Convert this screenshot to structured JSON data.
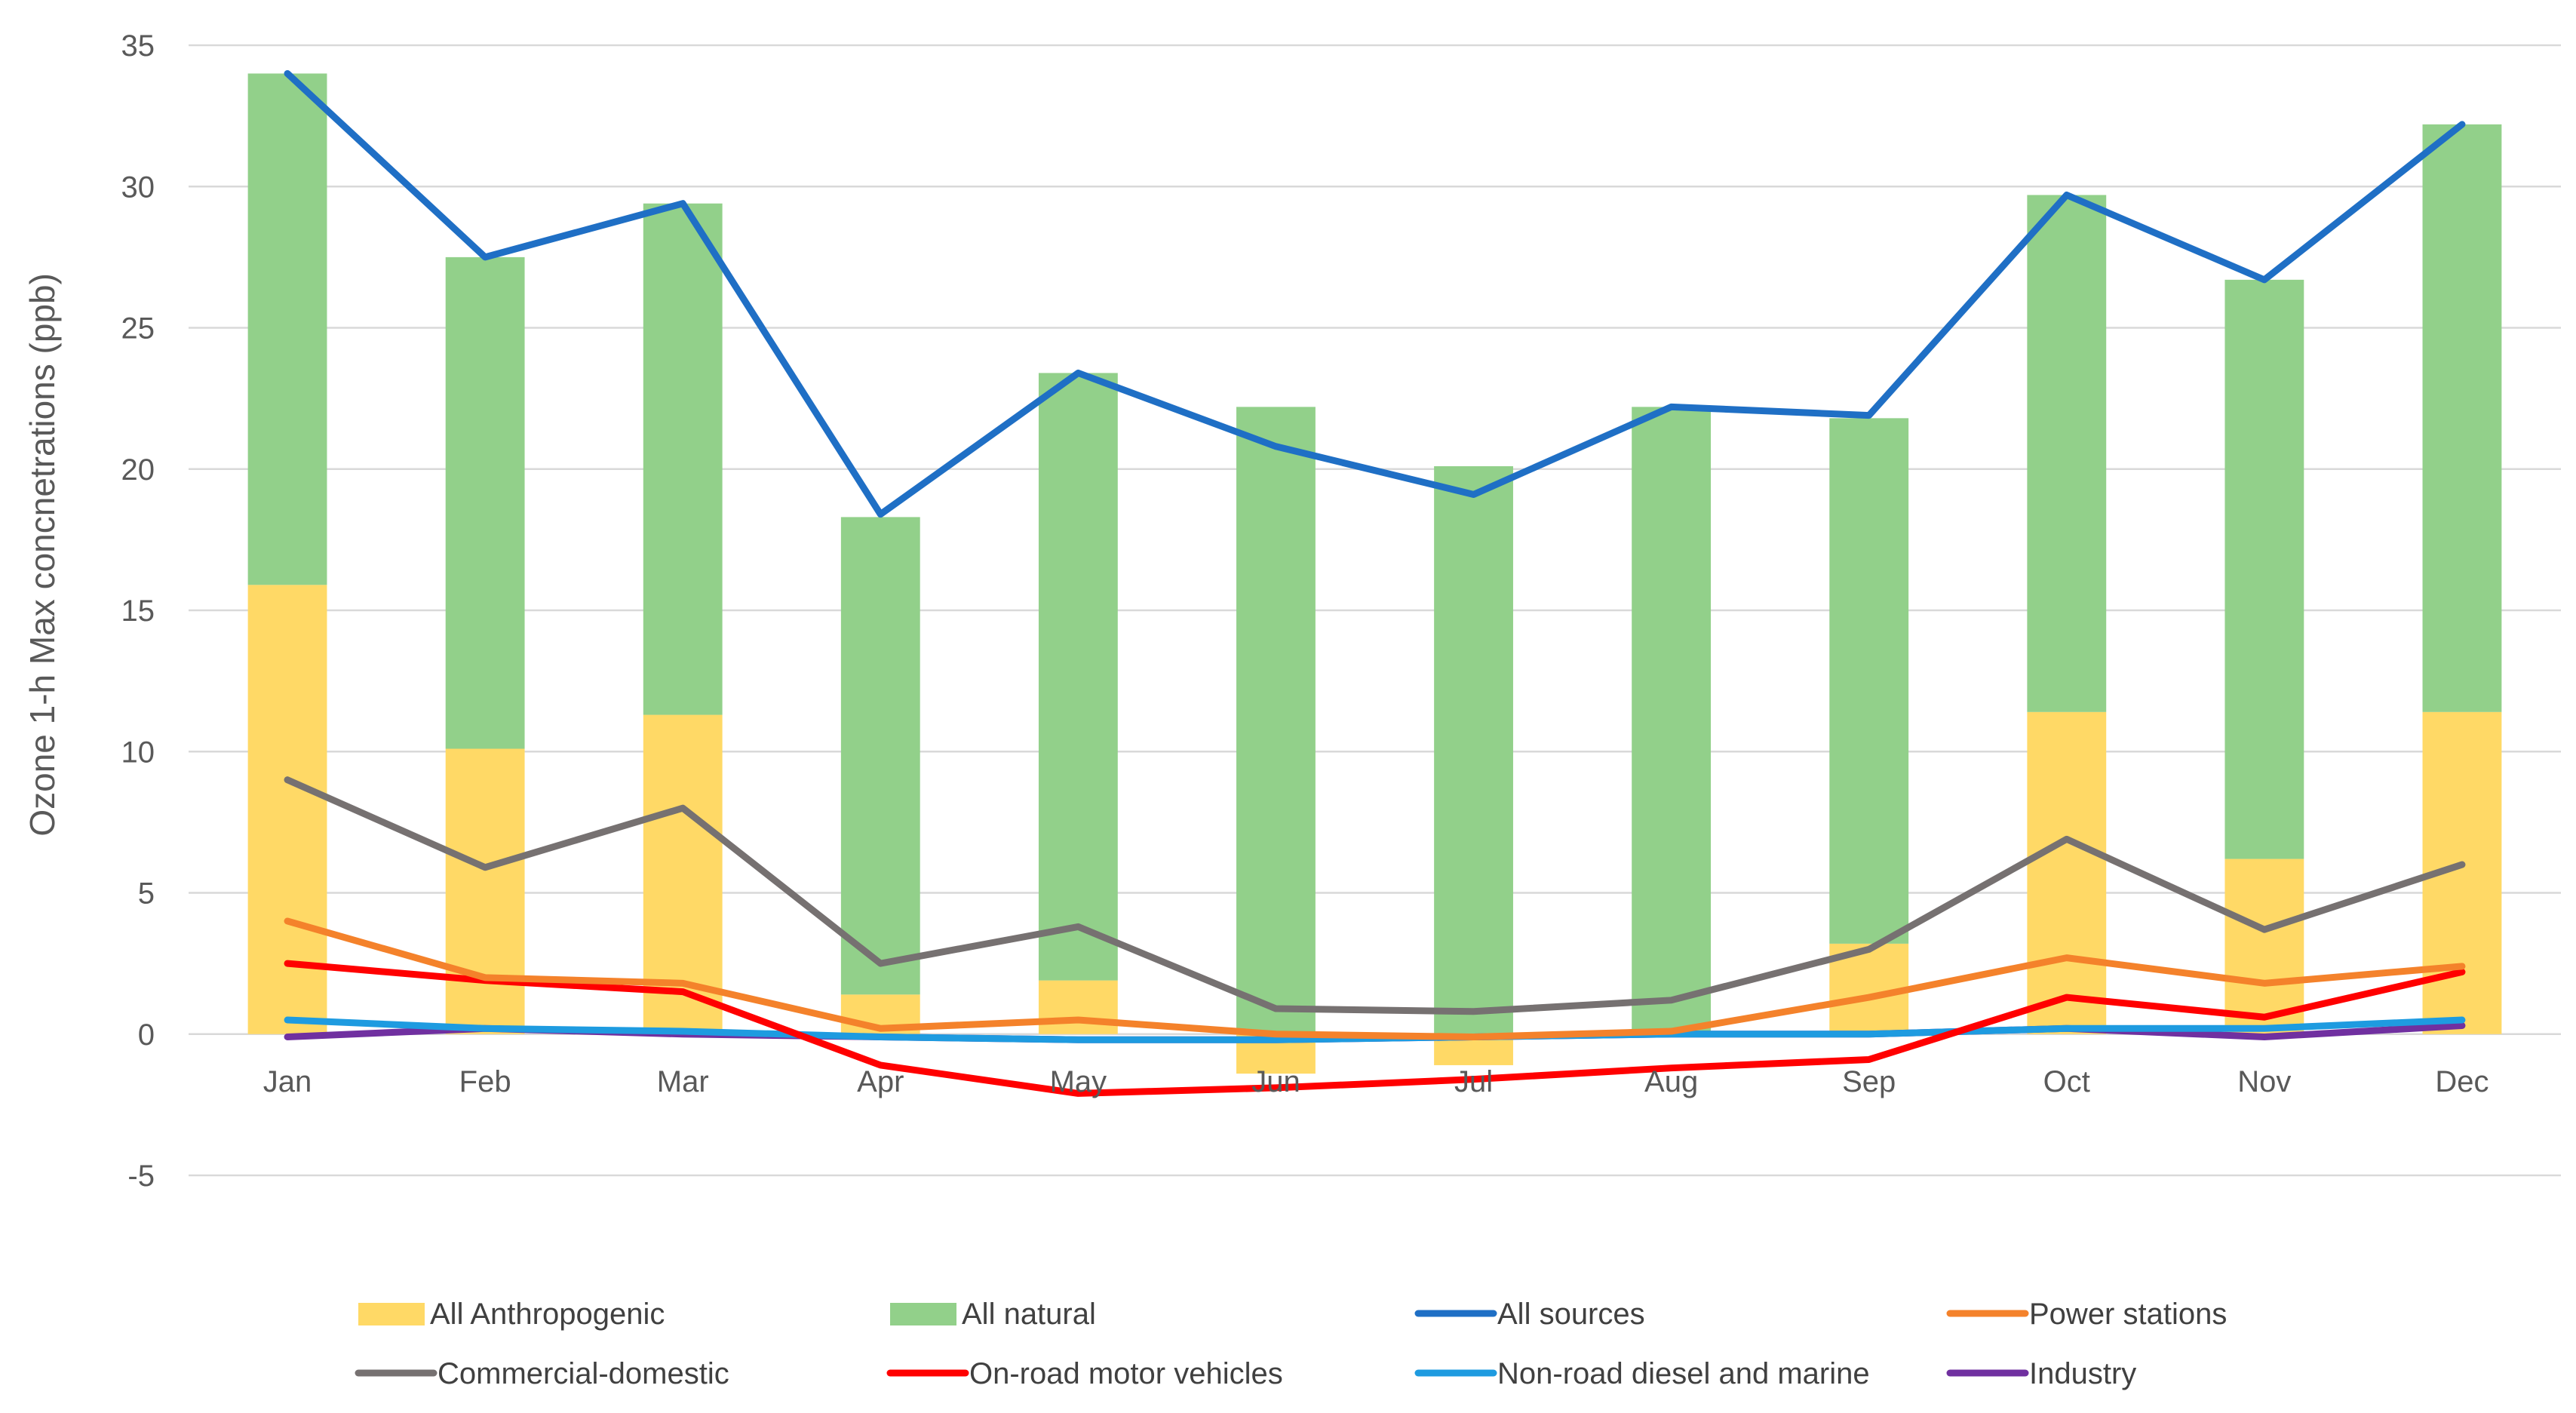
{
  "chart_data": {
    "type": "bar",
    "title": "",
    "xlabel": "",
    "ylabel": "Ozone  1-h Max concnetrations (ppb)",
    "ylim": [
      -5,
      35
    ],
    "yticks": [
      -5,
      0,
      5,
      10,
      15,
      20,
      25,
      30,
      35
    ],
    "grid": true,
    "legend_position": "bottom",
    "categories": [
      "Jan",
      "Feb",
      "Mar",
      "Apr",
      "May",
      "Jun",
      "Jul",
      "Aug",
      "Sep",
      "Oct",
      "Nov",
      "Dec"
    ],
    "bar_series": [
      {
        "name": "All Anthropogenic",
        "color": "#FFD966",
        "values": [
          15.9,
          10.1,
          11.3,
          1.4,
          1.9,
          -1.4,
          -1.1,
          0.1,
          3.2,
          11.4,
          6.2,
          11.4
        ]
      },
      {
        "name": "All natural",
        "color": "#92D08A",
        "values": [
          18.1,
          17.4,
          18.1,
          16.9,
          21.5,
          22.2,
          20.1,
          22.1,
          18.6,
          18.3,
          20.5,
          20.8
        ]
      }
    ],
    "line_series": [
      {
        "name": "All sources",
        "color": "#1F6FC5",
        "values": [
          34.0,
          27.5,
          29.4,
          18.4,
          23.4,
          20.8,
          19.1,
          22.2,
          21.9,
          29.7,
          26.7,
          32.2
        ]
      },
      {
        "name": "Power stations",
        "color": "#F4822B",
        "values": [
          4.0,
          2.0,
          1.8,
          0.2,
          0.5,
          0.0,
          -0.1,
          0.1,
          1.3,
          2.7,
          1.8,
          2.4
        ]
      },
      {
        "name": "Commercial-domestic",
        "color": "#767171",
        "values": [
          9.0,
          5.9,
          8.0,
          2.5,
          3.8,
          0.9,
          0.8,
          1.2,
          3.0,
          6.9,
          3.7,
          6.0
        ]
      },
      {
        "name": "On-road motor vehicles",
        "color": "#FF0000",
        "values": [
          2.5,
          1.9,
          1.5,
          -1.1,
          -2.1,
          -1.9,
          -1.6,
          -1.2,
          -0.9,
          1.3,
          0.6,
          2.2
        ]
      },
      {
        "name": "Non-road diesel and marine",
        "color": "#1E9BE0",
        "values": [
          0.5,
          0.2,
          0.1,
          -0.1,
          -0.2,
          -0.2,
          -0.1,
          0.0,
          0.0,
          0.2,
          0.2,
          0.5
        ]
      },
      {
        "name": "Industry",
        "color": "#7030A0",
        "values": [
          -0.1,
          0.2,
          0.0,
          -0.1,
          -0.2,
          -0.2,
          -0.1,
          0.0,
          0.0,
          0.2,
          -0.1,
          0.3
        ]
      }
    ],
    "legend_order": [
      {
        "name": "All Anthropogenic",
        "kind": "bar"
      },
      {
        "name": "All natural",
        "kind": "bar"
      },
      {
        "name": "All sources",
        "kind": "line"
      },
      {
        "name": "Power stations",
        "kind": "line"
      },
      {
        "name": "Commercial-domestic",
        "kind": "line"
      },
      {
        "name": "On-road motor vehicles",
        "kind": "line"
      },
      {
        "name": "Non-road diesel and marine",
        "kind": "line"
      },
      {
        "name": "Industry",
        "kind": "line"
      }
    ]
  }
}
